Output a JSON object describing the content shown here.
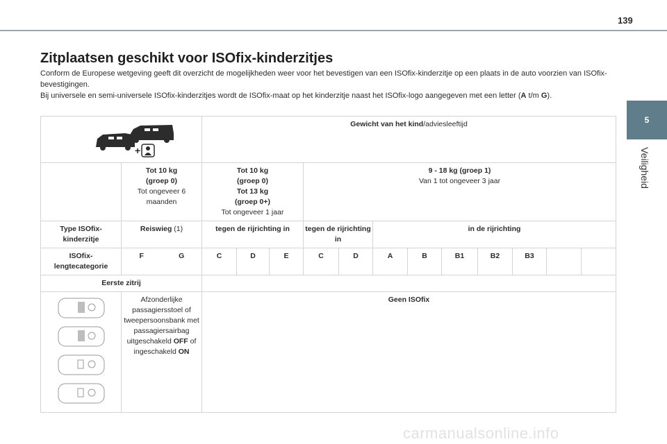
{
  "page_number": "139",
  "side_tab": {
    "number": "5",
    "label": "Veiligheid"
  },
  "title": "Zitplaatsen geschikt voor ISOfix-kinderzitjes",
  "intro": {
    "line1": "Conform de Europese wetgeving geeft dit overzicht de mogelijkheden weer voor het bevestigen van een ISOfix-kinderzitje op een plaats in de auto voorzien van ISOfix-bevestigingen.",
    "line2_pre": "Bij universele en semi-universele ISOfix-kinderzitjes wordt de ISOfix-maat op het kinderzitje naast het ISOfix-logo aangegeven met een letter (",
    "line2_a": "A",
    "line2_mid": " t/m ",
    "line2_g": "G",
    "line2_post": ")."
  },
  "table": {
    "header_bold": "Gewicht van het kind",
    "header_rest": "/adviesleeftijd",
    "weights": [
      {
        "l1": "Tot 10 kg",
        "l2": "(groep 0)",
        "l3": "Tot ongeveer 6 maanden"
      },
      {
        "l1": "Tot 10 kg",
        "l2": "(groep 0)",
        "l3": "Tot 13 kg",
        "l4": "(groep 0+)",
        "l5": "Tot ongeveer 1 jaar"
      },
      {
        "l1": "9 - 18 kg (groep 1)",
        "l2": "Van 1 tot ongeveer 3 jaar"
      }
    ],
    "type_label": "Type ISOfix-kinderzitje",
    "type_reiswieg": "Reiswieg",
    "type_reiswieg_note": " (1)",
    "type_tegen": "tegen de rijrichting in",
    "type_tegen2": "tegen de rijrichting in",
    "type_in": "in de rijrichting",
    "size_label": "ISOfix-lengtecategorie",
    "sizes": [
      "F",
      "G",
      "C",
      "D",
      "E",
      "C",
      "D",
      "A",
      "B",
      "B1",
      "B2",
      "B3"
    ],
    "row_label": "Eerste zitrij",
    "seat_desc_pre": "Afzonderlijke passagiersstoel of tweepersoonsbank met passagiersairbag uitgeschakeld ",
    "seat_off": "OFF",
    "seat_mid": " of ingeschakeld ",
    "seat_on": "ON",
    "result": "Geen ISOfix"
  },
  "watermark": "carmanualsonline.info"
}
